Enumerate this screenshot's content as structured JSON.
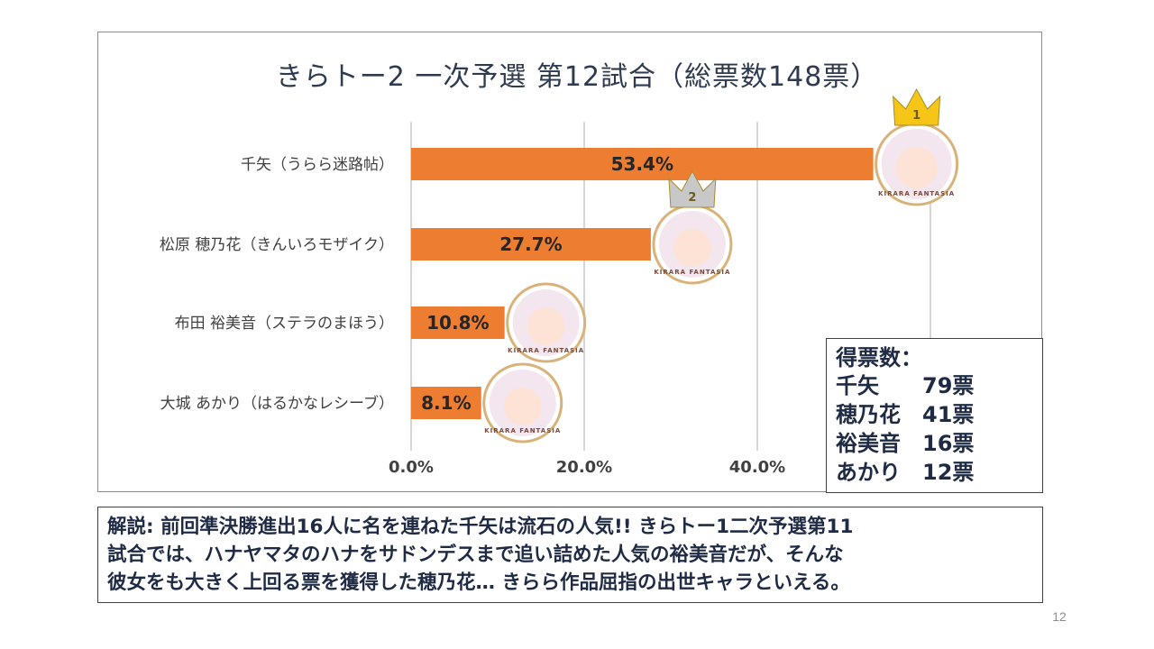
{
  "slide": {
    "title": "きらトー2 一次予選 第12試合（総票数148票）",
    "page_number": "12"
  },
  "chart_data": {
    "type": "bar",
    "orientation": "horizontal",
    "title": "きらトー2 一次予選 第12試合（総票数148票）",
    "categories": [
      "千矢（うらら迷路帖）",
      "松原 穂乃花（きんいろモザイク）",
      "布田 裕美音（ステラのまほう）",
      "大城 あかり（はるかなレシーブ）"
    ],
    "values": [
      53.4,
      27.7,
      10.8,
      8.1
    ],
    "value_labels": [
      "53.4%",
      "27.7%",
      "10.8%",
      "8.1%"
    ],
    "x_ticks": [
      "0.0%",
      "20.0%",
      "40.0%"
    ],
    "xlim": [
      0,
      60
    ],
    "grid": true,
    "bar_color": "#ed7d31",
    "rank_badges": [
      "1",
      "2"
    ],
    "badge_text": "KIRARA FANTASIA"
  },
  "votes": {
    "heading": "得票数：",
    "rows": [
      {
        "name": "千矢",
        "count": "79票"
      },
      {
        "name": "穂乃花",
        "count": "41票"
      },
      {
        "name": "裕美音",
        "count": "16票"
      },
      {
        "name": "あかり",
        "count": "12票"
      }
    ]
  },
  "comment": "解説: 前回準決勝進出16人に名を連ねた千矢は流石の人気!! きらトー1二次予選第11\n試合では、ハナヤマタのハナをサドンデスまで追い詰めた人気の裕美音だが、そんな\n彼女をも大きく上回る票を獲得した穂乃花… きらら作品屈指の出世キャラといえる。",
  "colors": {
    "bar": "#ed7d31",
    "title": "#2e3a4f",
    "text_box": "#1f2b44",
    "gold_crown": "#f5c518",
    "silver_crown": "#c8c8c8"
  }
}
